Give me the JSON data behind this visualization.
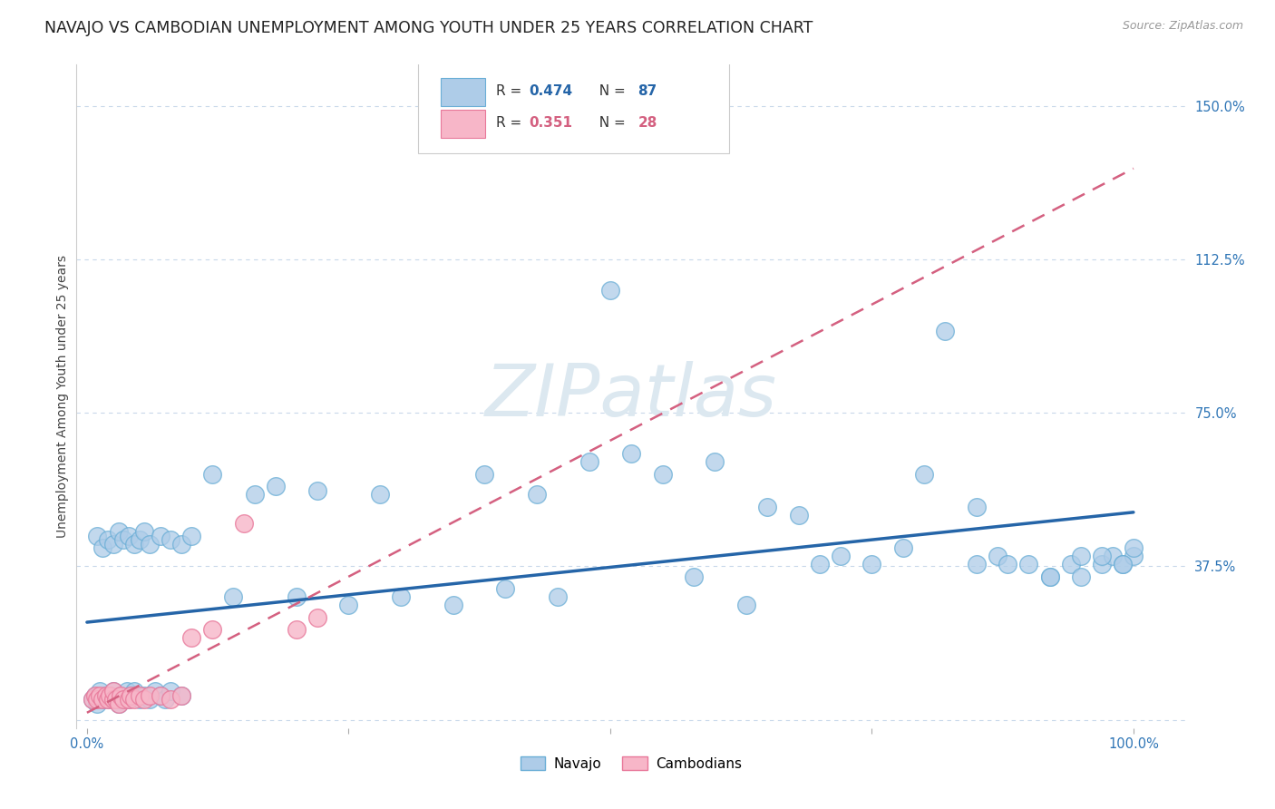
{
  "title": "NAVAJO VS CAMBODIAN UNEMPLOYMENT AMONG YOUTH UNDER 25 YEARS CORRELATION CHART",
  "source": "Source: ZipAtlas.com",
  "ylabel": "Unemployment Among Youth under 25 years",
  "xlim": [
    -0.01,
    1.05
  ],
  "ylim": [
    -0.02,
    1.6
  ],
  "yticks": [
    0.0,
    0.375,
    0.75,
    1.125,
    1.5
  ],
  "ytick_labels": [
    "",
    "37.5%",
    "75.0%",
    "112.5%",
    "150.0%"
  ],
  "navajo_R": 0.474,
  "navajo_N": 87,
  "cambodian_R": 0.351,
  "cambodian_N": 28,
  "navajo_color": "#aecce8",
  "navajo_edge_color": "#6aaed6",
  "cambodian_color": "#f7b6c8",
  "cambodian_edge_color": "#e8789a",
  "trend_navajo_color": "#2565a8",
  "trend_cambodian_color": "#d46080",
  "legend_R_navajo_color": "#2565a8",
  "legend_R_cambodian_color": "#d46080",
  "watermark_color": "#dce8f0",
  "background_color": "#ffffff",
  "grid_color": "#c8d8ea",
  "title_fontsize": 12.5,
  "axis_label_fontsize": 10,
  "tick_fontsize": 10.5,
  "legend_fontsize": 11,
  "source_fontsize": 9,
  "navajo_x": [
    0.005,
    0.008,
    0.01,
    0.012,
    0.015,
    0.018,
    0.02,
    0.022,
    0.025,
    0.025,
    0.028,
    0.03,
    0.032,
    0.035,
    0.038,
    0.04,
    0.042,
    0.045,
    0.05,
    0.055,
    0.06,
    0.065,
    0.07,
    0.075,
    0.08,
    0.09,
    0.01,
    0.015,
    0.02,
    0.025,
    0.03,
    0.035,
    0.04,
    0.045,
    0.05,
    0.055,
    0.06,
    0.07,
    0.08,
    0.09,
    0.1,
    0.12,
    0.14,
    0.16,
    0.18,
    0.2,
    0.22,
    0.25,
    0.28,
    0.3,
    0.35,
    0.38,
    0.4,
    0.43,
    0.45,
    0.48,
    0.5,
    0.52,
    0.55,
    0.58,
    0.6,
    0.63,
    0.65,
    0.68,
    0.7,
    0.72,
    0.75,
    0.78,
    0.8,
    0.82,
    0.85,
    0.87,
    0.88,
    0.9,
    0.92,
    0.94,
    0.95,
    0.97,
    0.98,
    0.99,
    1.0,
    1.0,
    0.99,
    0.97,
    0.95,
    0.92,
    0.85
  ],
  "navajo_y": [
    0.05,
    0.06,
    0.04,
    0.07,
    0.05,
    0.06,
    0.05,
    0.06,
    0.05,
    0.07,
    0.05,
    0.04,
    0.06,
    0.05,
    0.07,
    0.05,
    0.06,
    0.07,
    0.05,
    0.06,
    0.05,
    0.07,
    0.06,
    0.05,
    0.07,
    0.06,
    0.45,
    0.42,
    0.44,
    0.43,
    0.46,
    0.44,
    0.45,
    0.43,
    0.44,
    0.46,
    0.43,
    0.45,
    0.44,
    0.43,
    0.45,
    0.6,
    0.3,
    0.55,
    0.57,
    0.3,
    0.56,
    0.28,
    0.55,
    0.3,
    0.28,
    0.6,
    0.32,
    0.55,
    0.3,
    0.63,
    1.05,
    0.65,
    0.6,
    0.35,
    0.63,
    0.28,
    0.52,
    0.5,
    0.38,
    0.4,
    0.38,
    0.42,
    0.6,
    0.95,
    0.38,
    0.4,
    0.38,
    0.38,
    0.35,
    0.38,
    0.4,
    0.38,
    0.4,
    0.38,
    0.4,
    0.42,
    0.38,
    0.4,
    0.35,
    0.35,
    0.52
  ],
  "cambodian_x": [
    0.005,
    0.008,
    0.01,
    0.012,
    0.015,
    0.018,
    0.02,
    0.022,
    0.025,
    0.025,
    0.028,
    0.03,
    0.032,
    0.035,
    0.04,
    0.042,
    0.045,
    0.05,
    0.055,
    0.06,
    0.07,
    0.08,
    0.09,
    0.1,
    0.12,
    0.15,
    0.2,
    0.22
  ],
  "cambodian_y": [
    0.05,
    0.06,
    0.05,
    0.06,
    0.05,
    0.06,
    0.05,
    0.06,
    0.05,
    0.07,
    0.05,
    0.04,
    0.06,
    0.05,
    0.05,
    0.06,
    0.05,
    0.06,
    0.05,
    0.06,
    0.06,
    0.05,
    0.06,
    0.2,
    0.22,
    0.48,
    0.22,
    0.25
  ]
}
